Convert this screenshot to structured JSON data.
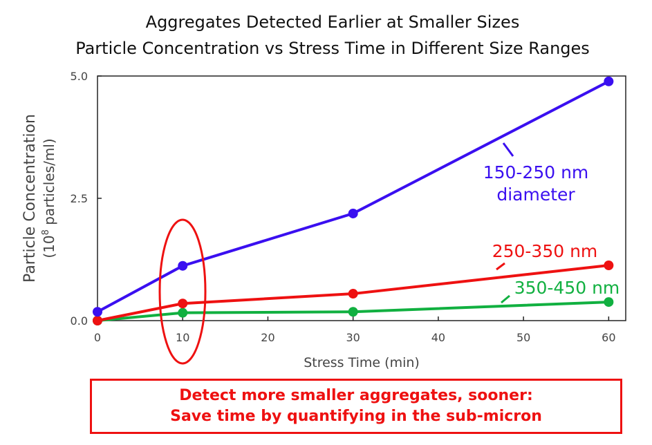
{
  "chart_data": {
    "type": "line",
    "title": "Aggregates Detected Earlier at Smaller Sizes",
    "subtitle": "Particle Concentration vs Stress Time in Different Size Ranges",
    "xlabel": "Stress Time (min)",
    "ylabel": "Particle Concentration",
    "ylabel_units_prefix": "(10",
    "ylabel_units_exp": "8",
    "ylabel_units_suffix": " particles/ml)",
    "xlim": [
      0,
      62
    ],
    "ylim": [
      0,
      5.0
    ],
    "xticks": [
      0,
      10,
      20,
      30,
      40,
      50,
      60
    ],
    "yticks": [
      0.0,
      2.5,
      5.0
    ],
    "ytick_labels": [
      "0.0",
      "2.5",
      "5.0"
    ],
    "grid": false,
    "x": [
      0,
      10,
      30,
      60
    ],
    "series": [
      {
        "name": "150-250 nm",
        "label_line2": "diameter",
        "color": "#3a0ff0",
        "values": [
          0.18,
          1.12,
          2.19,
          4.89
        ]
      },
      {
        "name": "250-350 nm",
        "color": "#ee1111",
        "values": [
          0.0,
          0.35,
          0.55,
          1.13
        ]
      },
      {
        "name": "350-450 nm",
        "color": "#11b040",
        "values": [
          0.0,
          0.16,
          0.18,
          0.38
        ]
      }
    ],
    "annotations": {
      "highlight_x": 10,
      "callout_line1": "Detect more smaller aggregates, sooner:",
      "callout_line2": "Save time by quantifying in the sub-micron"
    }
  }
}
